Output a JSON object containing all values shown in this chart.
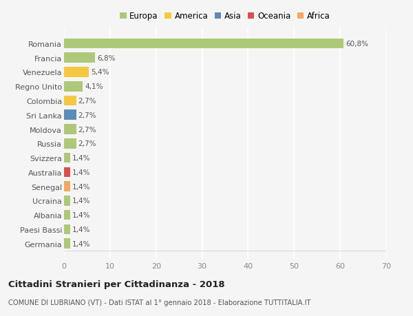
{
  "countries": [
    "Romania",
    "Francia",
    "Venezuela",
    "Regno Unito",
    "Colombia",
    "Sri Lanka",
    "Moldova",
    "Russia",
    "Svizzera",
    "Australia",
    "Senegal",
    "Ucraina",
    "Albania",
    "Paesi Bassi",
    "Germania"
  ],
  "values": [
    60.8,
    6.8,
    5.4,
    4.1,
    2.7,
    2.7,
    2.7,
    2.7,
    1.4,
    1.4,
    1.4,
    1.4,
    1.4,
    1.4,
    1.4
  ],
  "labels": [
    "60,8%",
    "6,8%",
    "5,4%",
    "4,1%",
    "2,7%",
    "2,7%",
    "2,7%",
    "2,7%",
    "1,4%",
    "1,4%",
    "1,4%",
    "1,4%",
    "1,4%",
    "1,4%",
    "1,4%"
  ],
  "colors": [
    "#adc878",
    "#adc878",
    "#f5c842",
    "#adc878",
    "#f5c842",
    "#5b8db8",
    "#adc878",
    "#adc878",
    "#adc878",
    "#d94f4f",
    "#f5a860",
    "#adc878",
    "#adc878",
    "#adc878",
    "#adc878"
  ],
  "continent_colors": {
    "Europa": "#adc878",
    "America": "#f5c842",
    "Asia": "#5b8db8",
    "Oceania": "#d94f4f",
    "Africa": "#f5a860"
  },
  "title": "Cittadini Stranieri per Cittadinanza - 2018",
  "subtitle": "COMUNE DI LUBRIANO (VT) - Dati ISTAT al 1° gennaio 2018 - Elaborazione TUTTITALIA.IT",
  "xlim": [
    0,
    70
  ],
  "xticks": [
    0,
    10,
    20,
    30,
    40,
    50,
    60,
    70
  ],
  "background_color": "#f5f5f5",
  "grid_color": "#ffffff",
  "bar_height": 0.7
}
